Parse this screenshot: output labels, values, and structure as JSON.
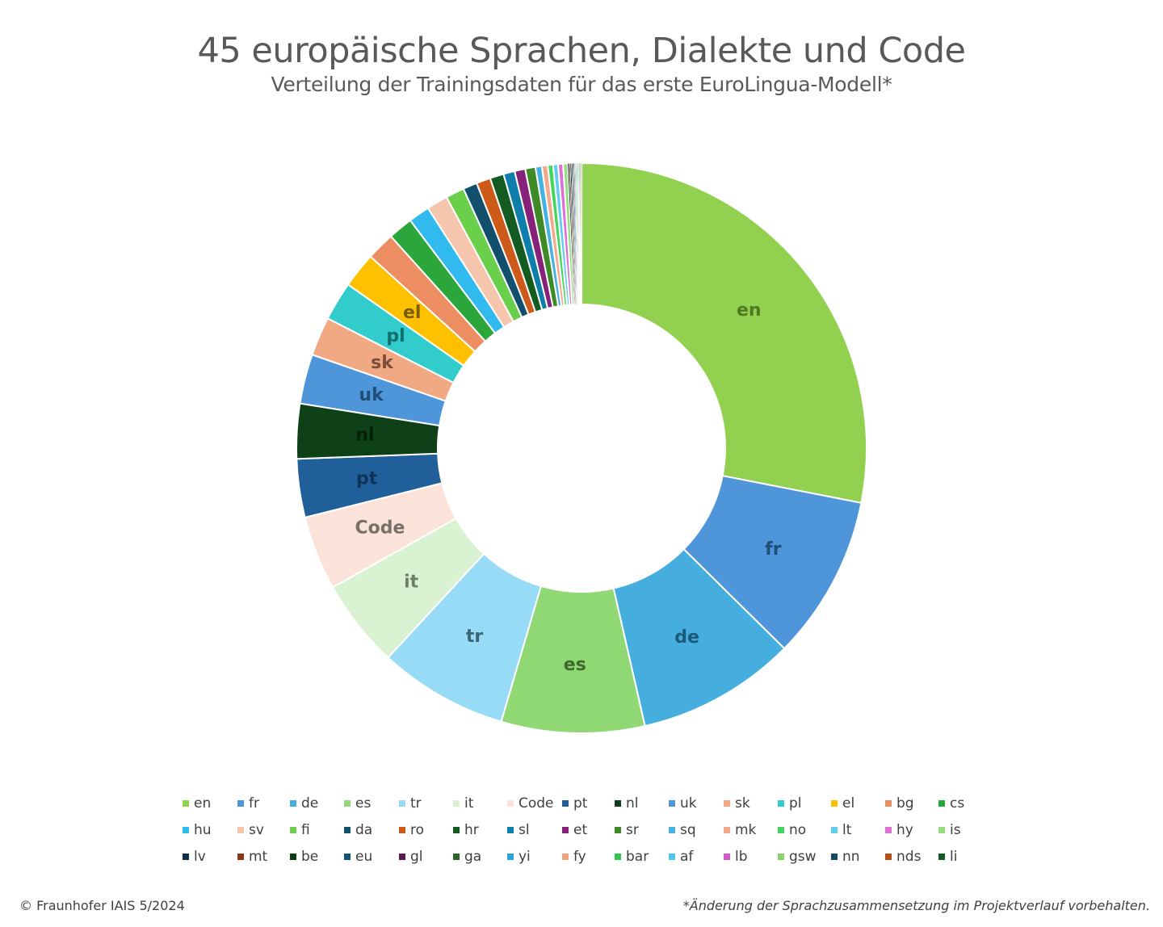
{
  "chart_data": {
    "type": "pie",
    "variant": "donut",
    "title": "45 europäische Sprachen, Dialekte und Code",
    "subtitle": "Verteilung der Trainingsdaten für das erste EuroLingua-Modell*",
    "unit": "percent of training data (estimated from slice angles)",
    "start_angle": "12 o'clock, clockwise",
    "legend_position": "bottom",
    "slices": [
      {
        "label": "en",
        "value": 28.0,
        "color": "#92D050",
        "label_color": "#4F7A22",
        "show_label": true
      },
      {
        "label": "fr",
        "value": 9.3,
        "color": "#4F95D9",
        "label_color": "#1F4E79",
        "show_label": true
      },
      {
        "label": "de",
        "value": 9.0,
        "color": "#45AEDF",
        "label_color": "#1B5A78",
        "show_label": true
      },
      {
        "label": "es",
        "value": 8.1,
        "color": "#8FD873",
        "label_color": "#3D6B2B",
        "show_label": true
      },
      {
        "label": "tr",
        "value": 7.3,
        "color": "#97DBF7",
        "label_color": "#3D6679",
        "show_label": true
      },
      {
        "label": "it",
        "value": 5.0,
        "color": "#D8F2D2",
        "label_color": "#6E7E6A",
        "show_label": true
      },
      {
        "label": "Code",
        "value": 4.2,
        "color": "#FBE3D9",
        "label_color": "#7A706B",
        "show_label": true
      },
      {
        "label": "pt",
        "value": 3.3,
        "color": "#215F9A",
        "label_color": "#0E3355",
        "show_label": true
      },
      {
        "label": "nl",
        "value": 3.1,
        "color": "#0E4118",
        "label_color": "#051F0B",
        "show_label": true
      },
      {
        "label": "uk",
        "value": 2.8,
        "color": "#4F95D9",
        "label_color": "#1F4E79",
        "show_label": true
      },
      {
        "label": "sk",
        "value": 2.2,
        "color": "#F1A983",
        "label_color": "#7A4E38",
        "show_label": true
      },
      {
        "label": "pl",
        "value": 2.2,
        "color": "#33CCCC",
        "label_color": "#146E6E",
        "show_label": true
      },
      {
        "label": "el",
        "value": 2.0,
        "color": "#FFC000",
        "label_color": "#7A5C00",
        "show_label": true
      },
      {
        "label": "bg",
        "value": 1.6,
        "color": "#ED8E62",
        "show_label": false
      },
      {
        "label": "cs",
        "value": 1.4,
        "color": "#2AA63A",
        "show_label": false
      },
      {
        "label": "hu",
        "value": 1.2,
        "color": "#30BAEE",
        "show_label": false
      },
      {
        "label": "sv",
        "value": 1.2,
        "color": "#F5C6AD",
        "show_label": false
      },
      {
        "label": "fi",
        "value": 1.05,
        "color": "#6ACF4A",
        "show_label": false
      },
      {
        "label": "da",
        "value": 0.8,
        "color": "#124F6C",
        "show_label": false
      },
      {
        "label": "ro",
        "value": 0.8,
        "color": "#CE5A1A",
        "show_label": false
      },
      {
        "label": "hr",
        "value": 0.78,
        "color": "#135B20",
        "show_label": false
      },
      {
        "label": "sl",
        "value": 0.64,
        "color": "#0E7FAA",
        "show_label": false
      },
      {
        "label": "et",
        "value": 0.6,
        "color": "#86227A",
        "show_label": false
      },
      {
        "label": "sr",
        "value": 0.58,
        "color": "#3E8A27",
        "show_label": false
      },
      {
        "label": "sq",
        "value": 0.36,
        "color": "#46B2E0",
        "show_label": false
      },
      {
        "label": "mk",
        "value": 0.33,
        "color": "#F3A98C",
        "show_label": false
      },
      {
        "label": "no",
        "value": 0.3,
        "color": "#42D75C",
        "show_label": false
      },
      {
        "label": "lt",
        "value": 0.28,
        "color": "#60CDF3",
        "show_label": false
      },
      {
        "label": "hy",
        "value": 0.28,
        "color": "#DE6FD4",
        "show_label": false
      },
      {
        "label": "is",
        "value": 0.25,
        "color": "#94DE7F",
        "show_label": false
      },
      {
        "label": "lv",
        "value": 0.08,
        "color": "#0E2F44",
        "show_label": false
      },
      {
        "label": "mt",
        "value": 0.07,
        "color": "#8A3A16",
        "show_label": false
      },
      {
        "label": "be",
        "value": 0.07,
        "color": "#0D3A14",
        "show_label": false
      },
      {
        "label": "eu",
        "value": 0.06,
        "color": "#0F5470",
        "show_label": false
      },
      {
        "label": "gl",
        "value": 0.06,
        "color": "#561A50",
        "show_label": false
      },
      {
        "label": "ga",
        "value": 0.05,
        "color": "#2D6326",
        "show_label": false
      },
      {
        "label": "yi",
        "value": 0.05,
        "color": "#2BA3DB",
        "show_label": false
      },
      {
        "label": "fy",
        "value": 0.05,
        "color": "#F1A27E",
        "show_label": false
      },
      {
        "label": "bar",
        "value": 0.05,
        "color": "#2EC74D",
        "show_label": false
      },
      {
        "label": "af",
        "value": 0.04,
        "color": "#4CC5F0",
        "show_label": false
      },
      {
        "label": "lb",
        "value": 0.04,
        "color": "#D558C8",
        "show_label": false
      },
      {
        "label": "gsw",
        "value": 0.04,
        "color": "#86D36B",
        "show_label": false
      },
      {
        "label": "nn",
        "value": 0.04,
        "color": "#144A66",
        "show_label": false
      },
      {
        "label": "nds",
        "value": 0.04,
        "color": "#B84F16",
        "show_label": false
      },
      {
        "label": "li",
        "value": 0.04,
        "color": "#145A22",
        "show_label": false
      }
    ]
  },
  "footer": {
    "credit": "© Fraunhofer IAIS 5/2024",
    "footnote": "*Änderung der Sprachzusammensetzung im Projektverlauf vorbehalten."
  }
}
